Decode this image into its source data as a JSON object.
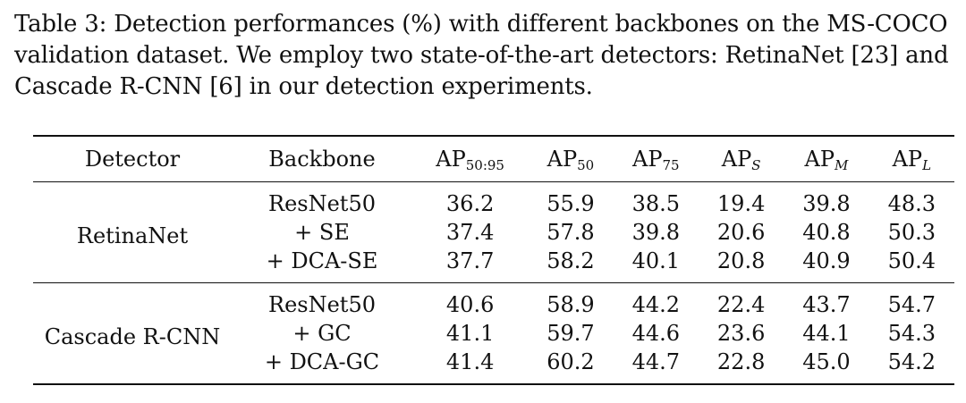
{
  "caption": "Table 3: Detection performances (%) with different backbones on the MS-COCO validation dataset. We employ two state-of-the-art detectors: RetinaNet [23] and Cascade R-CNN [6] in our detection experiments.",
  "columns": {
    "detector": "Detector",
    "backbone": "Backbone",
    "metrics": [
      {
        "base": "AP",
        "sub": "50:95",
        "italic": false
      },
      {
        "base": "AP",
        "sub": "50",
        "italic": false
      },
      {
        "base": "AP",
        "sub": "75",
        "italic": false
      },
      {
        "base": "AP",
        "sub": "S",
        "italic": true
      },
      {
        "base": "AP",
        "sub": "M",
        "italic": true
      },
      {
        "base": "AP",
        "sub": "L",
        "italic": true
      }
    ]
  },
  "groups": [
    {
      "detector": "RetinaNet",
      "rows": [
        {
          "backbone": "ResNet50",
          "values": [
            "36.2",
            "55.9",
            "38.5",
            "19.4",
            "39.8",
            "48.3"
          ],
          "bold": [
            false,
            false,
            false,
            false,
            false,
            false
          ]
        },
        {
          "backbone": "+ SE",
          "values": [
            "37.4",
            "57.8",
            "39.8",
            "20.6",
            "40.8",
            "50.3"
          ],
          "bold": [
            false,
            false,
            false,
            false,
            false,
            false
          ]
        },
        {
          "backbone": "+ DCA-SE",
          "values": [
            "37.7",
            "58.2",
            "40.1",
            "20.8",
            "40.9",
            "50.4"
          ],
          "bold": [
            true,
            true,
            true,
            true,
            true,
            true
          ]
        }
      ]
    },
    {
      "detector": "Cascade R-CNN",
      "rows": [
        {
          "backbone": "ResNet50",
          "values": [
            "40.6",
            "58.9",
            "44.2",
            "22.4",
            "43.7",
            "54.7"
          ],
          "bold": [
            false,
            false,
            false,
            false,
            false,
            true
          ]
        },
        {
          "backbone": "+ GC",
          "values": [
            "41.1",
            "59.7",
            "44.6",
            "23.6",
            "44.1",
            "54.3"
          ],
          "bold": [
            false,
            false,
            false,
            true,
            false,
            false
          ]
        },
        {
          "backbone": "+ DCA-GC",
          "values": [
            "41.4",
            "60.2",
            "44.7",
            "22.8",
            "45.0",
            "54.2"
          ],
          "bold": [
            true,
            true,
            true,
            false,
            true,
            false
          ]
        }
      ]
    }
  ]
}
